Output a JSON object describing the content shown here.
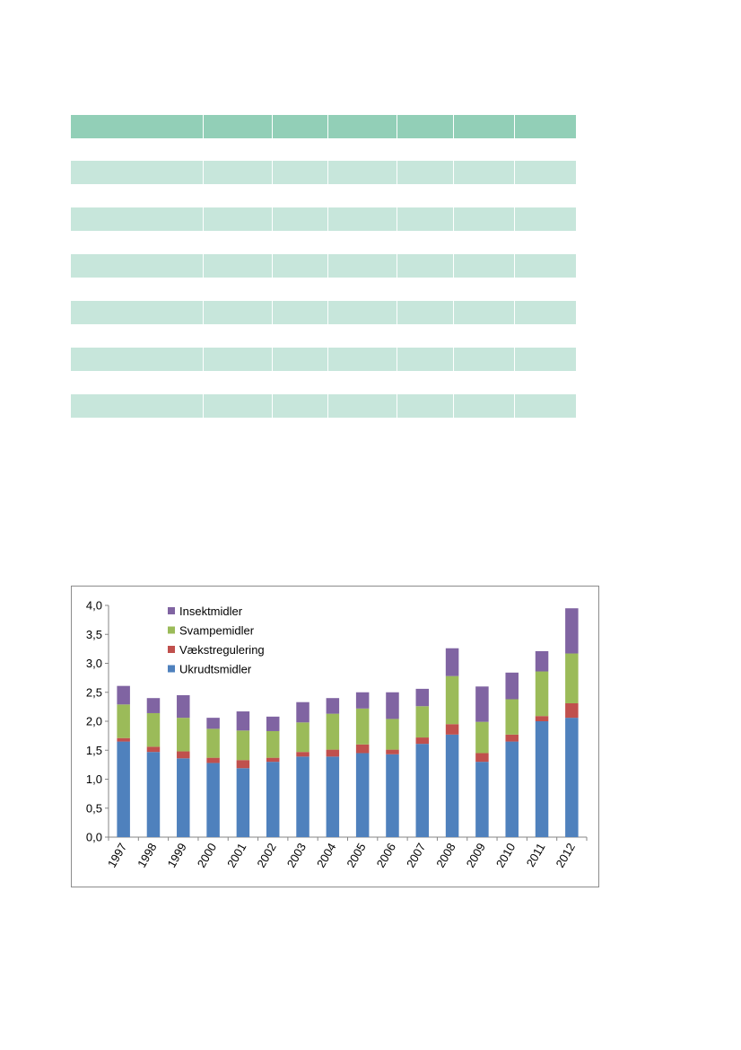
{
  "table": {
    "header_color": "#92cfb7",
    "band_color": "#c7e6db",
    "row_count": 7,
    "column_count": 8
  },
  "chart_data": {
    "type": "bar",
    "stacked": true,
    "categories": [
      "1997",
      "1998",
      "1999",
      "2000",
      "2001",
      "2002",
      "2003",
      "2004",
      "2005",
      "2006",
      "2007",
      "2008",
      "2009",
      "2010",
      "2011",
      "2012"
    ],
    "ylim": [
      0,
      4.0
    ],
    "yticks": [
      "0,0",
      "0,5",
      "1,0",
      "1,5",
      "2,0",
      "2,5",
      "3,0",
      "3,5",
      "4,0"
    ],
    "grid": false,
    "legend_position": "top-left",
    "series": [
      {
        "name": "Ukrudtsmidler",
        "color": "#4f81bd",
        "values": [
          1.65,
          1.47,
          1.36,
          1.28,
          1.19,
          1.3,
          1.39,
          1.39,
          1.45,
          1.43,
          1.61,
          1.77,
          1.3,
          1.65,
          2.0,
          2.06
        ]
      },
      {
        "name": "Vækstregulering",
        "color": "#c0504d",
        "values": [
          0.06,
          0.09,
          0.12,
          0.09,
          0.14,
          0.07,
          0.08,
          0.12,
          0.15,
          0.08,
          0.11,
          0.18,
          0.15,
          0.12,
          0.09,
          0.25
        ]
      },
      {
        "name": "Svampemidler",
        "color": "#9bbb59",
        "values": [
          0.58,
          0.58,
          0.58,
          0.5,
          0.51,
          0.46,
          0.51,
          0.62,
          0.62,
          0.53,
          0.54,
          0.83,
          0.54,
          0.61,
          0.77,
          0.86
        ]
      },
      {
        "name": "Insektmidler",
        "color": "#8064a2",
        "values": [
          0.32,
          0.26,
          0.39,
          0.19,
          0.33,
          0.25,
          0.35,
          0.27,
          0.28,
          0.46,
          0.3,
          0.48,
          0.61,
          0.46,
          0.35,
          0.78
        ]
      }
    ]
  }
}
